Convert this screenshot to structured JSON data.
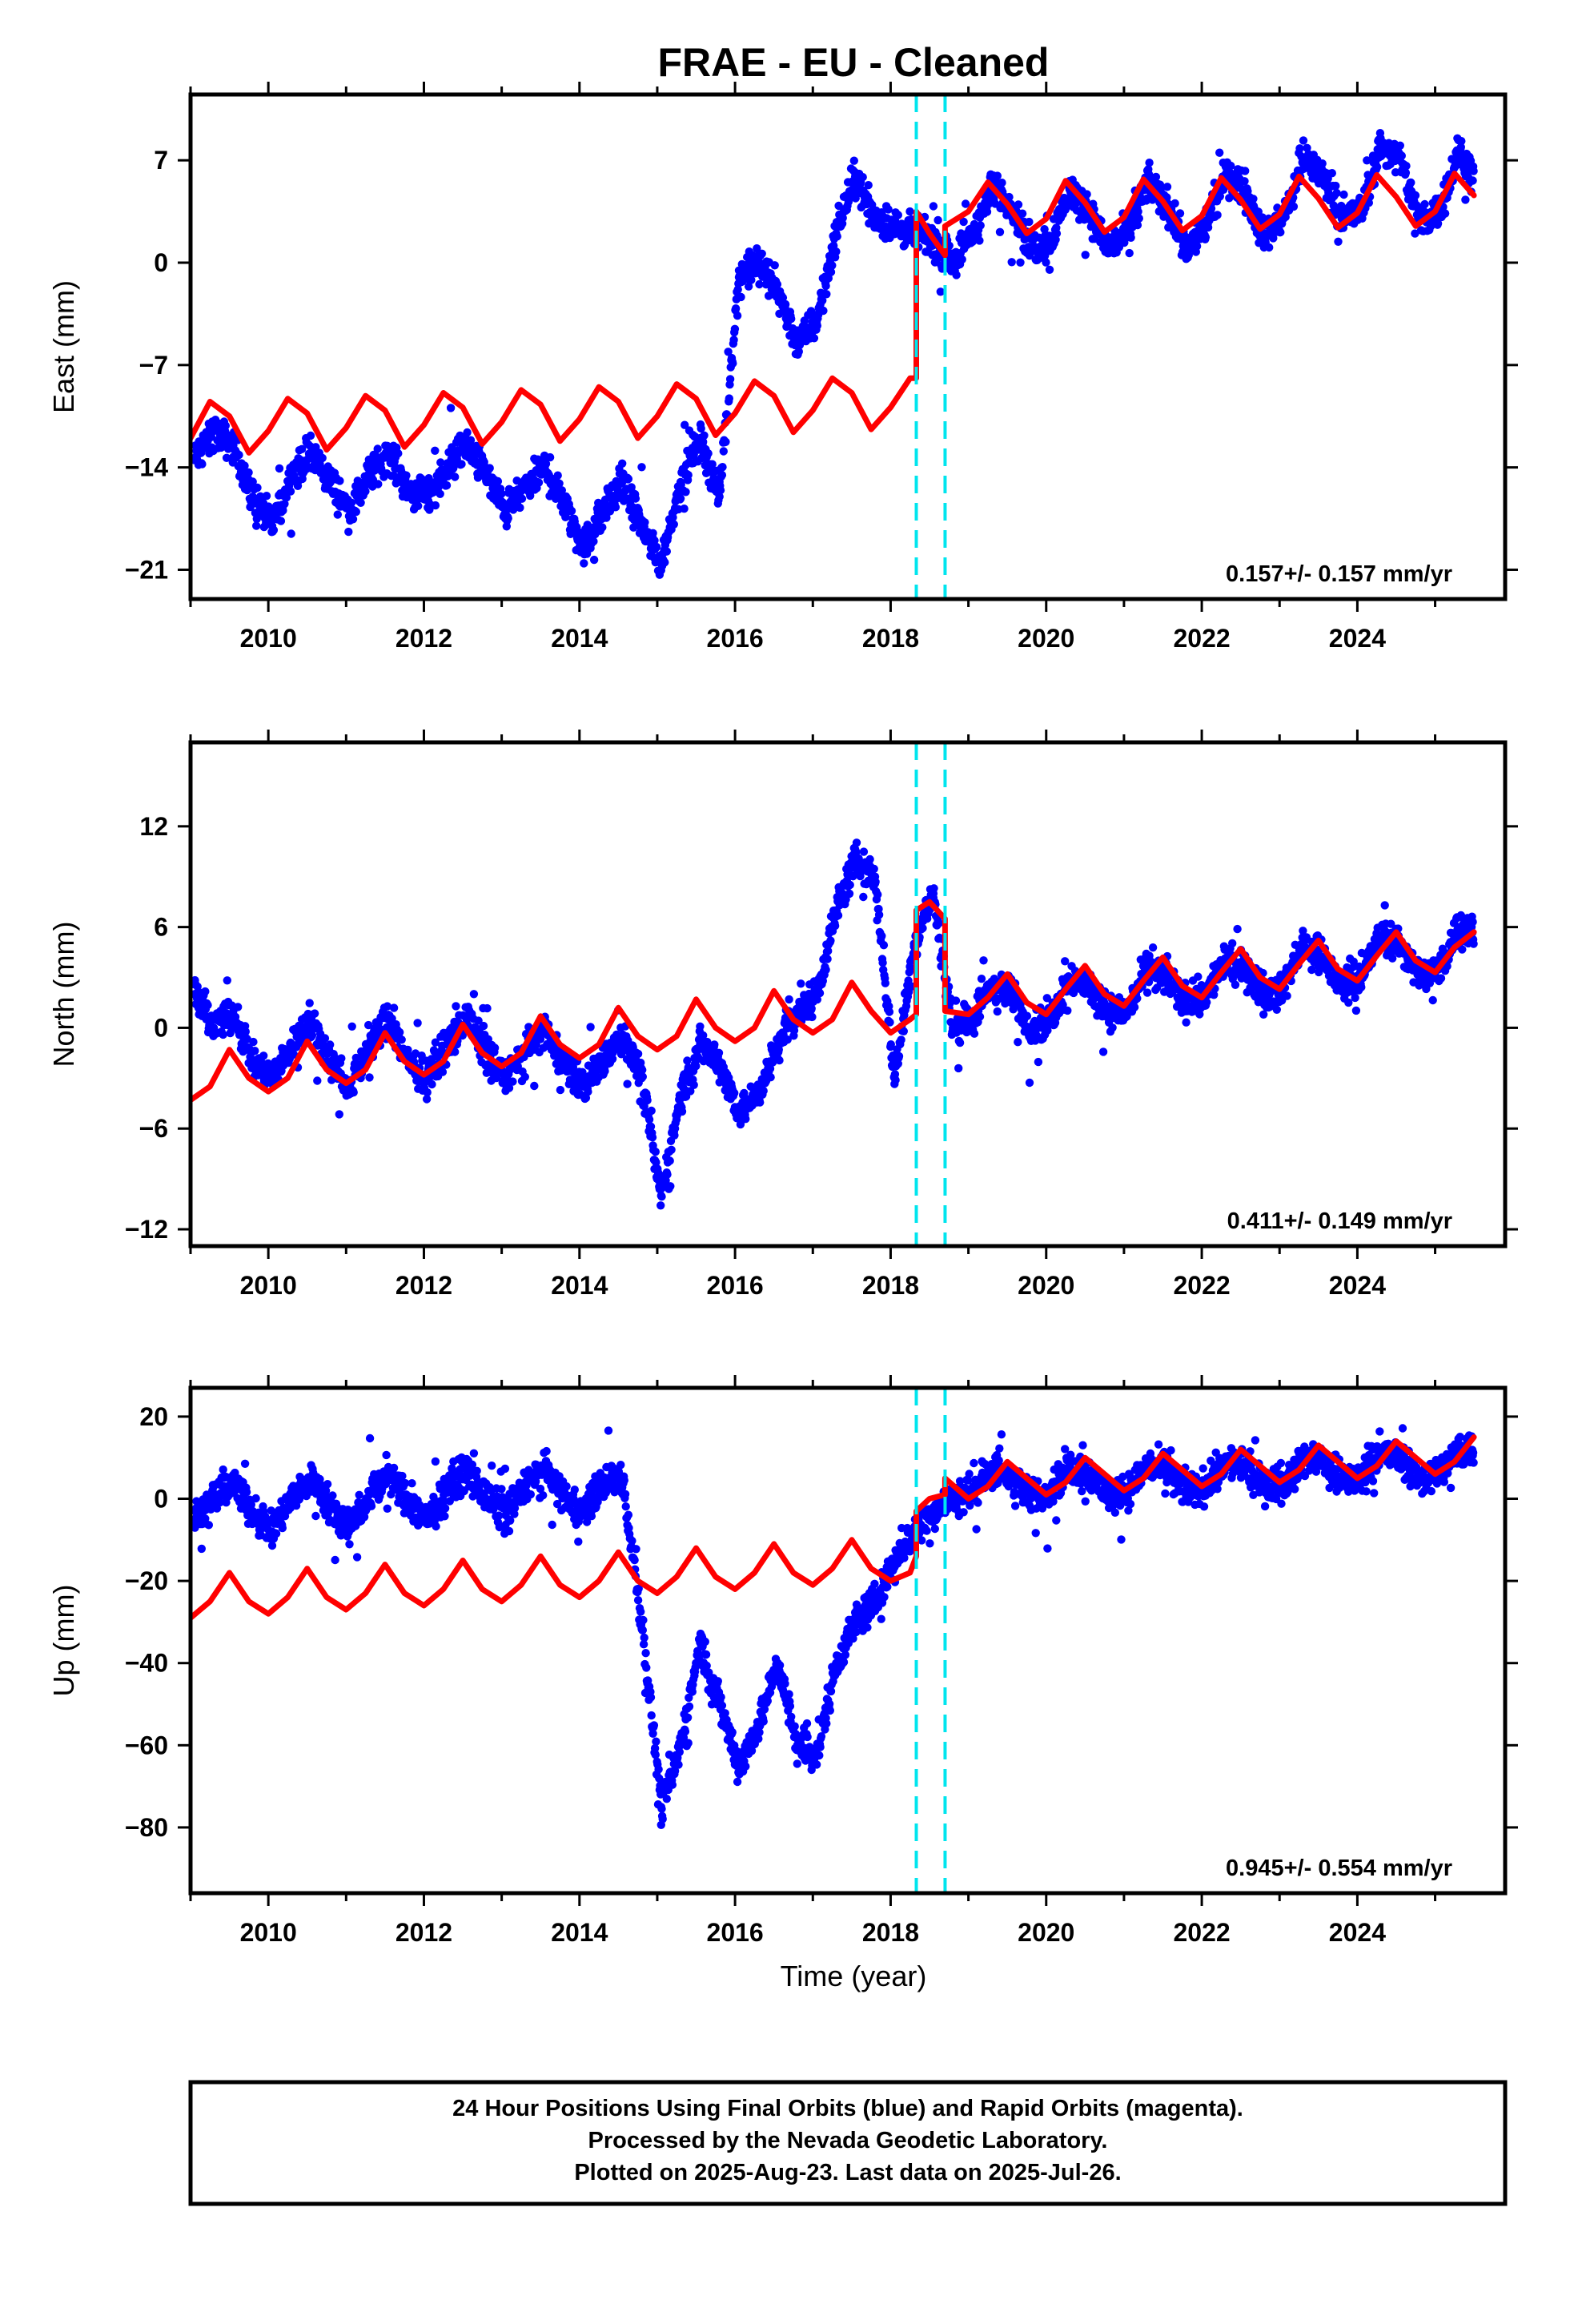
{
  "page": {
    "title": "FRAE  - EU - Cleaned",
    "x_axis_label": "Time (year)"
  },
  "footer": {
    "line1": "24 Hour Positions Using Final Orbits (blue) and Rapid Orbits (magenta).",
    "line2": "Processed by the Nevada Geodetic Laboratory.",
    "line3": "Plotted on 2025-Aug-23. Last data on 2025-Jul-26."
  },
  "colors": {
    "points": "#0000ff",
    "model": "#ff0000",
    "offsets": "#00e5ee",
    "frame": "#000000"
  },
  "chart_data": [
    {
      "type": "scatter",
      "component": "east",
      "title": "FRAE  - EU - Cleaned",
      "xlabel": "",
      "ylabel": "East (mm)",
      "xlim": [
        2009.0,
        2025.9
      ],
      "ylim": [
        -23,
        11.5
      ],
      "x_ticks": [
        2010,
        2012,
        2014,
        2016,
        2018,
        2020,
        2022,
        2024
      ],
      "x_tick_labels": [
        "2010",
        "2012",
        "2014",
        "2016",
        "2018",
        "2020",
        "2022",
        "2024"
      ],
      "y_ticks": [
        -21,
        -14,
        -7,
        0,
        7
      ],
      "y_tick_labels": [
        "−21",
        "−14",
        "−7",
        "0",
        "7"
      ],
      "rate_text": "0.157+/- 0.157 mm/yr",
      "offset_epochs": [
        2018.33,
        2018.7
      ],
      "series": [
        {
          "type": "scatter",
          "x": [
            2009.05,
            2009.3,
            2009.55,
            2009.8,
            2010.05,
            2010.3,
            2010.55,
            2010.8,
            2011.05,
            2011.3,
            2011.55,
            2011.8,
            2012.05,
            2012.3,
            2012.55,
            2012.8,
            2013.05,
            2013.3,
            2013.55,
            2013.8,
            2014.05,
            2014.3,
            2014.55,
            2014.8,
            2015.05,
            2015.3,
            2015.55,
            2015.8,
            2016.05,
            2016.3,
            2016.55,
            2016.8,
            2017.05,
            2017.3,
            2017.55,
            2017.8,
            2018.05,
            2018.3,
            2018.55,
            2018.8,
            2019.05,
            2019.3,
            2019.55,
            2019.8,
            2020.05,
            2020.3,
            2020.55,
            2020.8,
            2021.05,
            2021.3,
            2021.55,
            2021.8,
            2022.05,
            2022.3,
            2022.55,
            2022.8,
            2023.05,
            2023.3,
            2023.55,
            2023.8,
            2024.05,
            2024.3,
            2024.55,
            2024.8,
            2025.05,
            2025.3,
            2025.5
          ],
          "y": [
            -13.5,
            -11.5,
            -12.5,
            -16,
            -18,
            -14.5,
            -13,
            -15,
            -17,
            -14.5,
            -13,
            -15.5,
            -16,
            -14,
            -12.5,
            -14.5,
            -17,
            -15.5,
            -14,
            -16.5,
            -19.5,
            -17,
            -15,
            -18,
            -20.5,
            -15,
            -12,
            -16,
            -1,
            0,
            -2,
            -5.5,
            -4,
            2,
            6,
            3,
            2.5,
            2,
            1.5,
            0,
            2,
            5,
            4,
            1,
            1.5,
            5,
            3.5,
            1,
            2,
            5.5,
            4,
            1,
            2.5,
            6,
            5,
            2,
            3,
            7,
            6,
            3,
            3.5,
            8,
            7,
            3,
            3.5,
            7.5,
            6
          ]
        },
        {
          "type": "line",
          "x": [
            2009.0,
            2009.25,
            2009.5,
            2009.75,
            2010.0,
            2010.25,
            2010.5,
            2010.75,
            2011.0,
            2011.25,
            2011.5,
            2011.75,
            2012.0,
            2012.25,
            2012.5,
            2012.75,
            2013.0,
            2013.25,
            2013.5,
            2013.75,
            2014.0,
            2014.25,
            2014.5,
            2014.75,
            2015.0,
            2015.25,
            2015.5,
            2015.75,
            2016.0,
            2016.25,
            2016.5,
            2016.75,
            2017.0,
            2017.25,
            2017.5,
            2017.75,
            2018.0,
            2018.25,
            2018.33,
            2018.33,
            2018.5,
            2018.7,
            2018.7,
            2019.0,
            2019.25,
            2019.5,
            2019.75,
            2020.0,
            2020.25,
            2020.5,
            2020.75,
            2021.0,
            2021.25,
            2021.5,
            2021.75,
            2022.0,
            2022.25,
            2022.5,
            2022.75,
            2023.0,
            2023.25,
            2023.5,
            2023.75,
            2024.0,
            2024.25,
            2024.5,
            2024.75,
            2025.0,
            2025.25,
            2025.5
          ],
          "y": [
            -12,
            -9.5,
            -10.5,
            -13,
            -11.5,
            -9.3,
            -10.3,
            -12.8,
            -11.3,
            -9.1,
            -10.1,
            -12.6,
            -11.1,
            -8.9,
            -9.9,
            -12.4,
            -10.9,
            -8.7,
            -9.7,
            -12.2,
            -10.7,
            -8.5,
            -9.5,
            -12.0,
            -10.5,
            -8.3,
            -9.3,
            -11.8,
            -10.3,
            -8.1,
            -9.1,
            -11.6,
            -10.1,
            -7.9,
            -8.9,
            -11.4,
            -9.9,
            -7.9,
            -7.9,
            3.5,
            2.0,
            0.5,
            2.5,
            3.5,
            5.5,
            4,
            2,
            3,
            5.6,
            4.1,
            2.1,
            3.1,
            5.7,
            4.2,
            2.2,
            3.2,
            5.8,
            4.3,
            2.3,
            3.3,
            5.9,
            4.4,
            2.4,
            3.4,
            6.0,
            4.5,
            2.5,
            3.5,
            6.1,
            4.6
          ]
        }
      ]
    },
    {
      "type": "scatter",
      "component": "north",
      "xlabel": "",
      "ylabel": "North (mm)",
      "xlim": [
        2009.0,
        2025.9
      ],
      "ylim": [
        -13,
        17
      ],
      "x_ticks": [
        2010,
        2012,
        2014,
        2016,
        2018,
        2020,
        2022,
        2024
      ],
      "x_tick_labels": [
        "2010",
        "2012",
        "2014",
        "2016",
        "2018",
        "2020",
        "2022",
        "2024"
      ],
      "y_ticks": [
        -12,
        -6,
        0,
        6,
        12
      ],
      "y_tick_labels": [
        "−12",
        "−6",
        "0",
        "6",
        "12"
      ],
      "rate_text": "0.411+/- 0.149 mm/yr",
      "offset_epochs": [
        2018.33,
        2018.7
      ],
      "series": [
        {
          "type": "scatter",
          "x": [
            2009.05,
            2009.3,
            2009.55,
            2009.8,
            2010.05,
            2010.3,
            2010.55,
            2010.8,
            2011.05,
            2011.3,
            2011.55,
            2011.8,
            2012.05,
            2012.3,
            2012.55,
            2012.8,
            2013.05,
            2013.3,
            2013.55,
            2013.8,
            2014.05,
            2014.3,
            2014.55,
            2014.8,
            2015.05,
            2015.3,
            2015.55,
            2015.8,
            2016.05,
            2016.3,
            2016.55,
            2016.8,
            2017.05,
            2017.3,
            2017.55,
            2017.8,
            2018.05,
            2018.3,
            2018.55,
            2018.8,
            2019.05,
            2019.3,
            2019.55,
            2019.8,
            2020.05,
            2020.3,
            2020.55,
            2020.8,
            2021.05,
            2021.3,
            2021.55,
            2021.8,
            2022.05,
            2022.3,
            2022.55,
            2022.8,
            2023.05,
            2023.3,
            2023.55,
            2023.8,
            2024.05,
            2024.3,
            2024.55,
            2024.8,
            2025.05,
            2025.3,
            2025.5
          ],
          "y": [
            2,
            0,
            1,
            -2,
            -3,
            -1,
            0.5,
            -2,
            -3.5,
            -1,
            0.5,
            -2,
            -3,
            -1,
            0.5,
            -1.5,
            -3,
            -1.5,
            0,
            -2,
            -3.5,
            -2,
            -0.5,
            -3,
            -10,
            -4,
            -1,
            -2,
            -5,
            -4,
            -1,
            1,
            2,
            7,
            10,
            9,
            -3,
            5,
            8,
            0,
            0.5,
            2.5,
            2,
            0,
            0.5,
            3,
            2.5,
            1,
            1,
            3.5,
            3,
            1.5,
            2,
            4,
            3.5,
            2,
            2.5,
            5,
            4,
            2.5,
            3,
            5.5,
            5,
            3,
            3.5,
            6,
            5.5
          ]
        },
        {
          "type": "line",
          "x": [
            2009.0,
            2009.25,
            2009.5,
            2009.75,
            2010.0,
            2010.25,
            2010.5,
            2010.75,
            2011.0,
            2011.25,
            2011.5,
            2011.75,
            2012.0,
            2012.25,
            2012.5,
            2012.75,
            2013.0,
            2013.25,
            2013.5,
            2013.75,
            2014.0,
            2014.25,
            2014.5,
            2014.75,
            2015.0,
            2015.25,
            2015.5,
            2015.75,
            2016.0,
            2016.25,
            2016.5,
            2016.75,
            2017.0,
            2017.25,
            2017.5,
            2017.75,
            2018.0,
            2018.25,
            2018.33,
            2018.33,
            2018.5,
            2018.7,
            2018.7,
            2019.0,
            2019.25,
            2019.5,
            2019.75,
            2020.0,
            2020.25,
            2020.5,
            2020.75,
            2021.0,
            2021.25,
            2021.5,
            2021.75,
            2022.0,
            2022.25,
            2022.5,
            2022.75,
            2023.0,
            2023.25,
            2023.5,
            2023.75,
            2024.0,
            2024.25,
            2024.5,
            2024.75,
            2025.0,
            2025.25,
            2025.5
          ],
          "y": [
            -4.3,
            -3.5,
            -1.3,
            -3,
            -3.8,
            -3.0,
            -0.8,
            -2.5,
            -3.3,
            -2.5,
            -0.3,
            -2.0,
            -2.8,
            -2.0,
            0.2,
            -1.5,
            -2.3,
            -1.5,
            0.7,
            -1.0,
            -1.8,
            -1.0,
            1.2,
            -0.5,
            -1.3,
            -0.5,
            1.7,
            0,
            -0.8,
            0,
            2.2,
            0.5,
            -0.3,
            0.5,
            2.7,
            1.0,
            -0.3,
            0.5,
            0.8,
            7.0,
            7.5,
            6.5,
            1.0,
            0.8,
            1.8,
            3.2,
            1.5,
            0.8,
            2.3,
            3.7,
            2.0,
            1.3,
            2.8,
            4.2,
            2.5,
            1.8,
            3.3,
            4.7,
            3.0,
            2.3,
            3.8,
            5.2,
            3.5,
            2.8,
            4.3,
            5.7,
            4.0,
            3.3,
            4.8,
            5.7
          ]
        }
      ]
    },
    {
      "type": "scatter",
      "component": "up",
      "xlabel": "Time (year)",
      "ylabel": "Up (mm)",
      "xlim": [
        2009.0,
        2025.9
      ],
      "ylim": [
        -96,
        27
      ],
      "x_ticks": [
        2010,
        2012,
        2014,
        2016,
        2018,
        2020,
        2022,
        2024
      ],
      "x_tick_labels": [
        "2010",
        "2012",
        "2014",
        "2016",
        "2018",
        "2020",
        "2022",
        "2024"
      ],
      "y_ticks": [
        -80,
        -60,
        -40,
        -20,
        0,
        20
      ],
      "y_tick_labels": [
        "−80",
        "−60",
        "−40",
        "−20",
        "0",
        "20"
      ],
      "rate_text": "0.945+/- 0.554 mm/yr",
      "offset_epochs": [
        2018.33,
        2018.7
      ],
      "series": [
        {
          "type": "scatter",
          "x": [
            2009.05,
            2009.3,
            2009.55,
            2009.8,
            2010.05,
            2010.3,
            2010.55,
            2010.8,
            2011.05,
            2011.3,
            2011.55,
            2011.8,
            2012.05,
            2012.3,
            2012.55,
            2012.8,
            2013.05,
            2013.3,
            2013.55,
            2013.8,
            2014.05,
            2014.3,
            2014.55,
            2014.8,
            2015.05,
            2015.3,
            2015.55,
            2015.8,
            2016.05,
            2016.3,
            2016.55,
            2016.8,
            2017.05,
            2017.3,
            2017.55,
            2017.8,
            2018.05,
            2018.3,
            2018.55,
            2018.8,
            2019.05,
            2019.3,
            2019.55,
            2019.8,
            2020.05,
            2020.3,
            2020.55,
            2020.8,
            2021.05,
            2021.3,
            2021.55,
            2021.8,
            2022.05,
            2022.3,
            2022.55,
            2022.8,
            2023.05,
            2023.3,
            2023.55,
            2023.8,
            2024.05,
            2024.3,
            2024.55,
            2024.8,
            2025.05,
            2025.3,
            2025.5
          ],
          "y": [
            -5,
            0,
            4,
            -3,
            -8,
            0,
            5,
            -2,
            -7,
            1,
            6,
            -1,
            -5,
            2,
            7,
            0,
            -4,
            3,
            7,
            1,
            -3,
            4,
            5,
            -30,
            -75,
            -60,
            -35,
            -50,
            -65,
            -55,
            -40,
            -60,
            -62,
            -40,
            -30,
            -25,
            -15,
            -8,
            -3,
            0,
            2,
            7,
            5,
            0,
            2,
            8,
            6,
            1,
            2,
            8,
            7,
            2,
            3,
            9,
            8,
            3,
            4,
            10,
            9,
            4,
            5,
            11,
            10,
            5,
            6,
            12,
            12
          ]
        },
        {
          "type": "line",
          "x": [
            2009.0,
            2009.25,
            2009.5,
            2009.75,
            2010.0,
            2010.25,
            2010.5,
            2010.75,
            2011.0,
            2011.25,
            2011.5,
            2011.75,
            2012.0,
            2012.25,
            2012.5,
            2012.75,
            2013.0,
            2013.25,
            2013.5,
            2013.75,
            2014.0,
            2014.25,
            2014.5,
            2014.75,
            2015.0,
            2015.25,
            2015.5,
            2015.75,
            2016.0,
            2016.25,
            2016.5,
            2016.75,
            2017.0,
            2017.25,
            2017.5,
            2017.75,
            2018.0,
            2018.25,
            2018.33,
            2018.33,
            2018.5,
            2018.7,
            2018.7,
            2019.0,
            2019.25,
            2019.5,
            2019.75,
            2020.0,
            2020.25,
            2020.5,
            2020.75,
            2021.0,
            2021.25,
            2021.5,
            2021.75,
            2022.0,
            2022.25,
            2022.5,
            2022.75,
            2023.0,
            2023.25,
            2023.5,
            2023.75,
            2024.0,
            2024.25,
            2024.5,
            2024.75,
            2025.0,
            2025.25,
            2025.5
          ],
          "y": [
            -29,
            -25,
            -18,
            -25,
            -28,
            -24,
            -17,
            -24,
            -27,
            -23,
            -16,
            -23,
            -26,
            -22,
            -15,
            -22,
            -25,
            -21,
            -14,
            -21,
            -24,
            -20,
            -13,
            -20,
            -23,
            -19,
            -12,
            -19,
            -22,
            -18,
            -11,
            -18,
            -21,
            -17,
            -10,
            -17,
            -20,
            -18,
            -14,
            -3,
            0,
            1,
            5,
            0,
            3,
            9,
            5,
            1,
            4,
            10,
            6,
            2,
            5,
            11,
            7,
            3,
            6,
            12,
            8,
            4,
            7,
            13,
            9,
            5,
            8,
            14,
            10,
            6,
            9,
            15
          ]
        }
      ]
    }
  ]
}
